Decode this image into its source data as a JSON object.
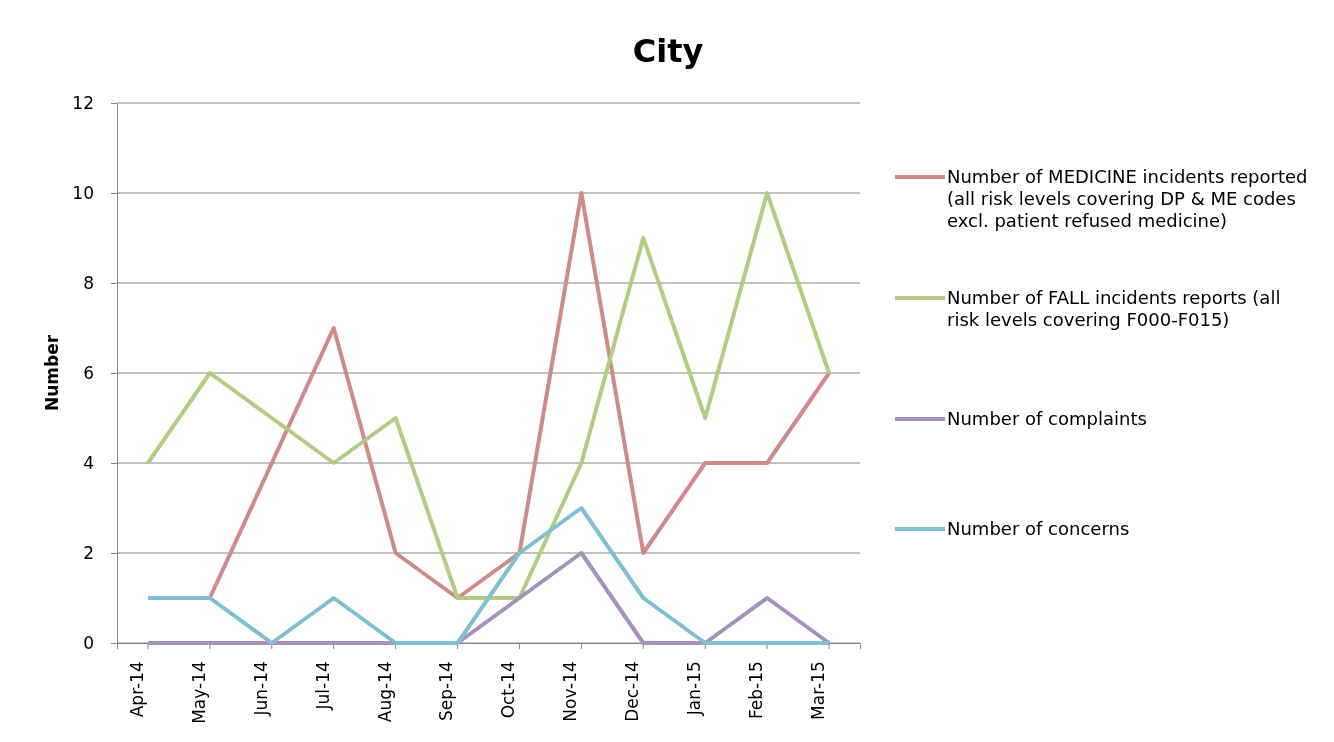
{
  "chart_data": {
    "type": "line",
    "title": "City",
    "ylabel": "Number",
    "categories": [
      "Apr-14",
      "May-14",
      "Jun-14",
      "Jul-14",
      "Aug-14",
      "Sep-14",
      "Oct-14",
      "Nov-14",
      "Dec-14",
      "Jan-15",
      "Feb-15",
      "Mar-15"
    ],
    "series": [
      {
        "name": "Number of MEDICINE incidents reported (all risk levels covering DP & ME codes excl. patient refused medicine)",
        "color": "#d08a88",
        "values": [
          null,
          1,
          4,
          7,
          2,
          1,
          2,
          10,
          2,
          4,
          4,
          6
        ]
      },
      {
        "name": "Number of FALL incidents reports (all risk levels covering F000-F015)",
        "color": "#b3cc82",
        "values": [
          4,
          6,
          5,
          4,
          5,
          1,
          1,
          4,
          9,
          5,
          10,
          6
        ]
      },
      {
        "name": "Number of complaints",
        "color": "#a592bc",
        "values": [
          0,
          0,
          0,
          0,
          0,
          0,
          1,
          2,
          0,
          0,
          1,
          0
        ]
      },
      {
        "name": "Number of concerns",
        "color": "#7fbfd3",
        "values": [
          1,
          1,
          0,
          1,
          0,
          0,
          2,
          3,
          1,
          0,
          0,
          0
        ]
      }
    ],
    "ylim": [
      0,
      12
    ],
    "yticks": [
      0,
      2,
      4,
      6,
      8,
      10,
      12
    ],
    "grid": "y",
    "legend": "right",
    "marker": "none",
    "line_style": "solid"
  }
}
